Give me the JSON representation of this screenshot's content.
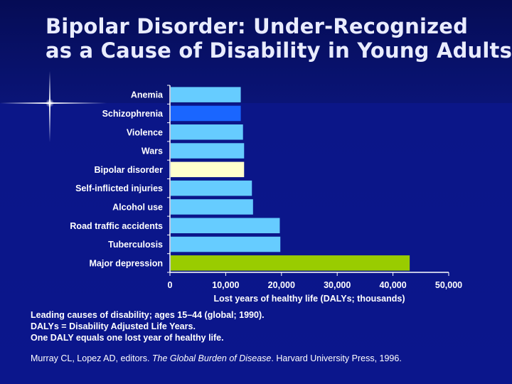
{
  "slide": {
    "title_line1": "Bipolar Disorder: Under-Recognized",
    "title_line2": "as a Cause of Disability in Young Adults"
  },
  "notes": {
    "line1": "Leading causes of disability; ages 15–44 (global; 1990).",
    "line2": "DALYs = Disability Adjusted Life Years.",
    "line3": "One DALY equals one lost year of healthy life."
  },
  "citation": {
    "authors": "Murray CL, Lopez AD, editors.",
    "work": "The Global Burden of Disease",
    "publisher": ". Harvard University Press, 1996."
  },
  "colors": {
    "bar_default": "#66ccff",
    "bar_schizophrenia": "#1a66ff",
    "bar_bipolar": "#ffffcc",
    "bar_major_depression": "#99cc00",
    "text": "#ffffff"
  },
  "chart_data": {
    "type": "bar",
    "orientation": "horizontal",
    "categories": [
      "Anemia",
      "Schizophrenia",
      "Violence",
      "Wars",
      "Bipolar disorder",
      "Self-inflicted injuries",
      "Alcohol use",
      "Road traffic accidents",
      "Tuberculosis",
      "Major depression"
    ],
    "values": [
      12700,
      12700,
      13100,
      13300,
      13300,
      14700,
      14900,
      19700,
      19800,
      43000
    ],
    "bar_colors": [
      "#66ccff",
      "#1a66ff",
      "#66ccff",
      "#66ccff",
      "#ffffcc",
      "#66ccff",
      "#66ccff",
      "#66ccff",
      "#66ccff",
      "#99cc00"
    ],
    "xlabel": "Lost years of healthy life (DALYs; thousands)",
    "xlim": [
      0,
      50000
    ],
    "xticks": [
      0,
      10000,
      20000,
      30000,
      40000,
      50000
    ],
    "xtick_labels": [
      "0",
      "10,000",
      "20,000",
      "30,000",
      "40,000",
      "50,000"
    ],
    "grid": false,
    "legend": "none"
  }
}
